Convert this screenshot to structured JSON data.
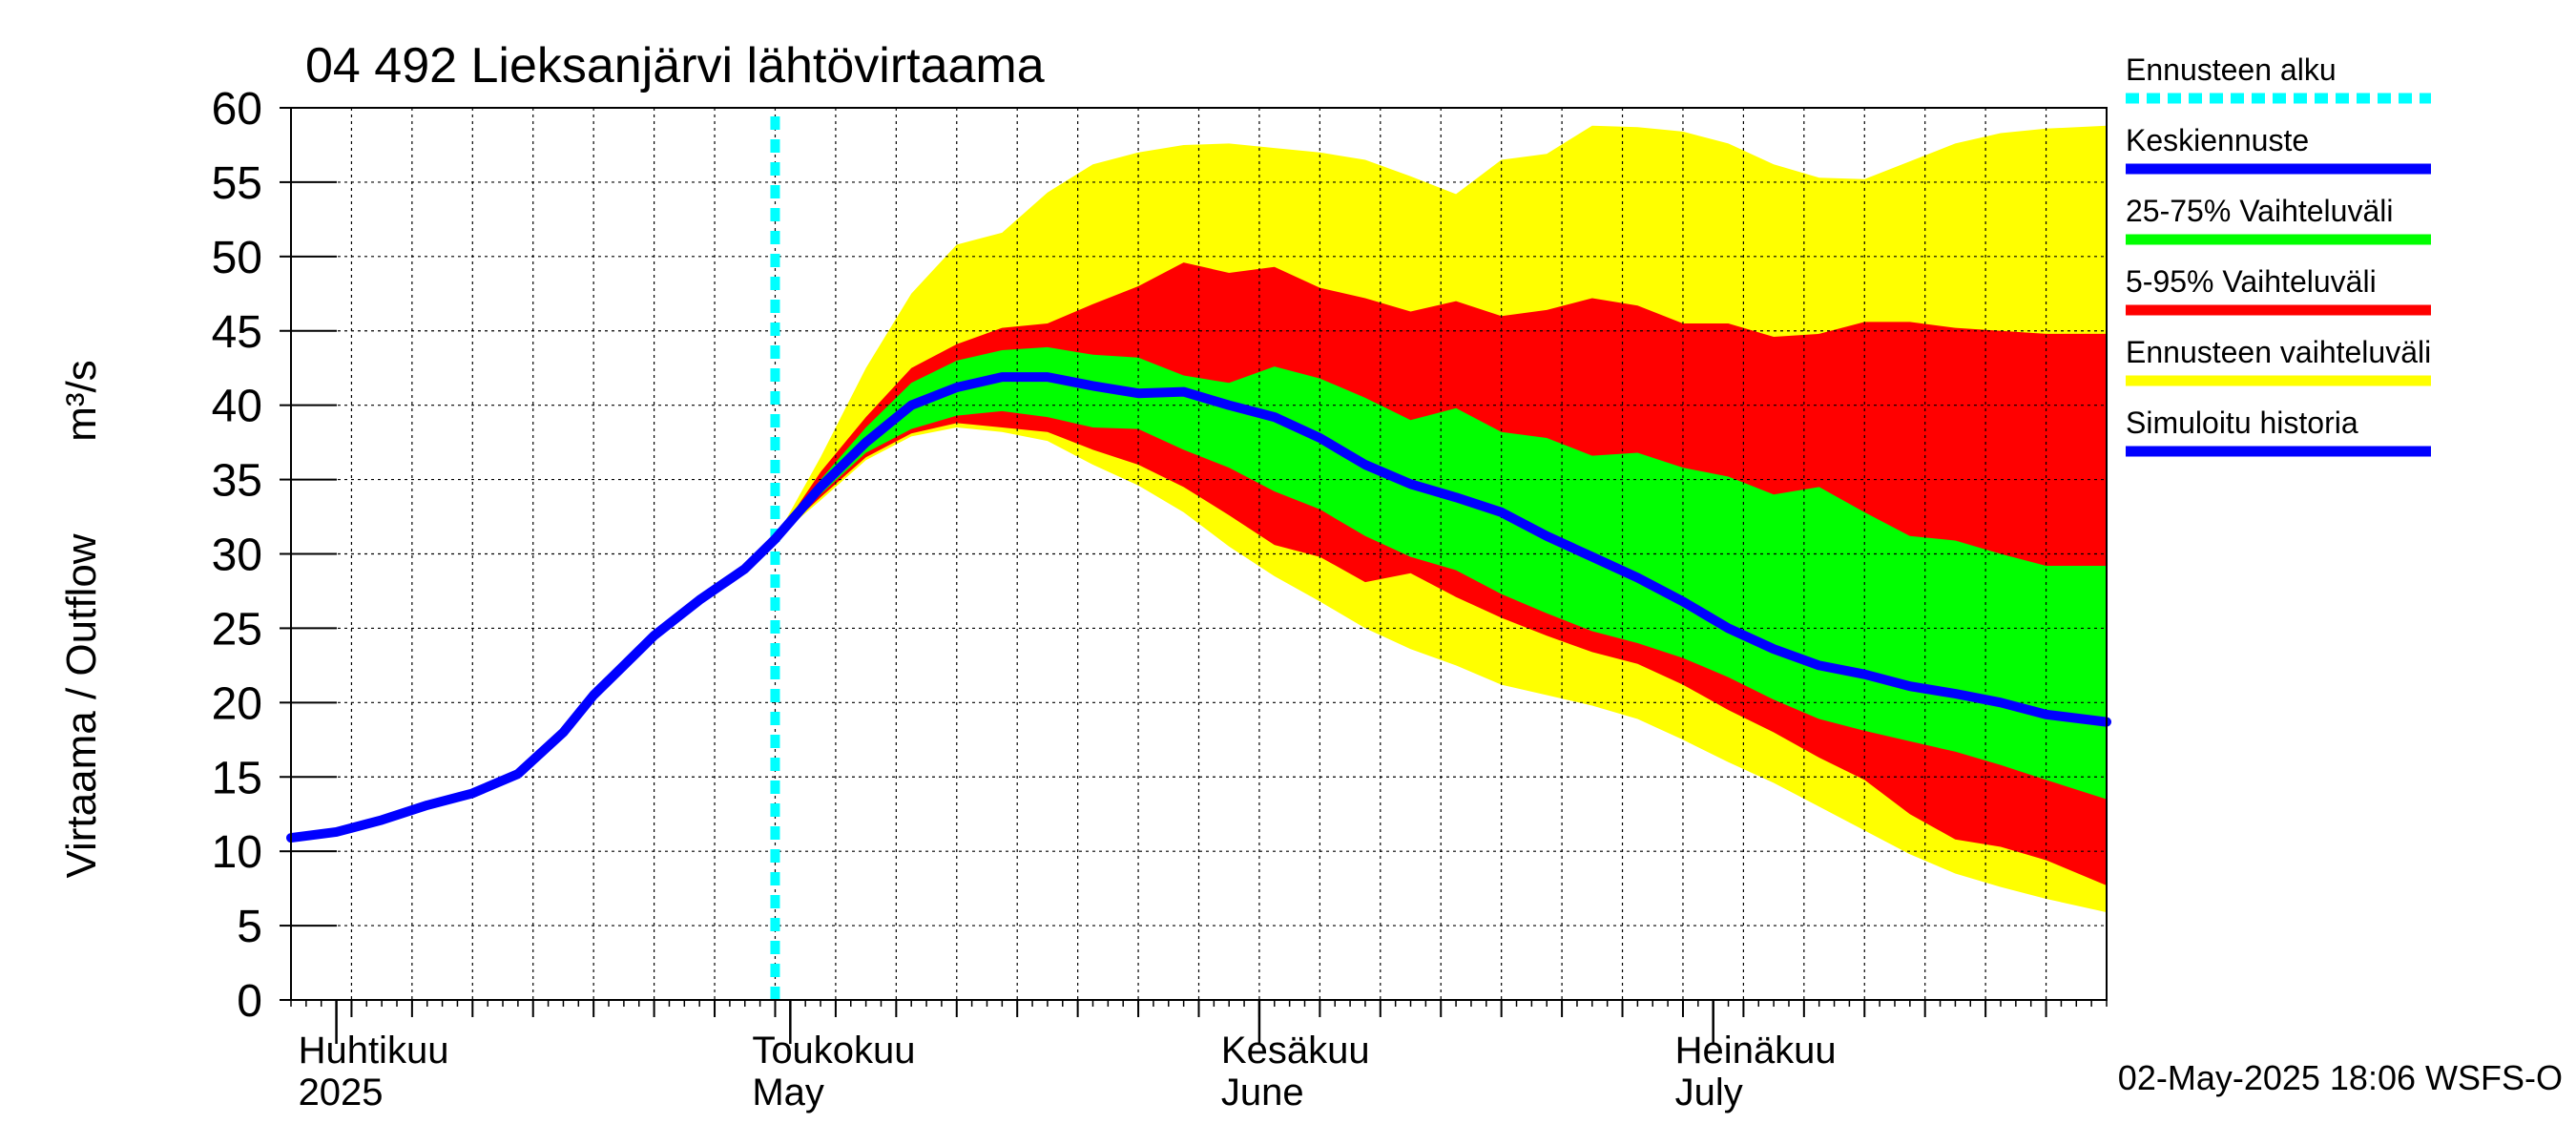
{
  "chart_data": {
    "type": "area",
    "title": "04 492 Lieksanjärvi lähtövirtaama",
    "ylabel": "Virtaama / Outflow",
    "yunit": "m³/s",
    "ylim": [
      0,
      60
    ],
    "yticks": [
      0,
      5,
      10,
      15,
      20,
      25,
      30,
      35,
      40,
      45,
      50,
      55,
      60
    ],
    "xlim": [
      "2025-03-29",
      "2025-07-27"
    ],
    "months": [
      {
        "date": "2025-04-01",
        "fi": "Huhtikuu",
        "en": "2025"
      },
      {
        "date": "2025-05-01",
        "fi": "Toukokuu",
        "en": "May"
      },
      {
        "date": "2025-06-01",
        "fi": "Kesäkuu",
        "en": "June"
      },
      {
        "date": "2025-07-01",
        "fi": "Heinäkuu",
        "en": "July"
      }
    ],
    "forecast_start": "2025-04-30",
    "grid": true,
    "legend_position": "right",
    "timestamp": "02-May-2025 18:06 WSFS-O",
    "legend": [
      {
        "key": "start",
        "label": "Ennusteen alku",
        "color": "#00ffff",
        "style": "dashed"
      },
      {
        "key": "mean",
        "label": "Keskiennuste",
        "color": "#0000ff"
      },
      {
        "key": "p25_75",
        "label": "25-75% Vaihteluväli",
        "color": "#00ff00"
      },
      {
        "key": "p5_95",
        "label": "5-95% Vaihteluväli",
        "color": "#ff0000"
      },
      {
        "key": "range",
        "label": "Ennusteen vaihteluväli",
        "color": "#ffff00"
      },
      {
        "key": "history",
        "label": "Simuloitu historia",
        "color": "#0000ff"
      }
    ],
    "history": {
      "name": "Simuloitu historia",
      "dates": [
        "2025-03-29",
        "2025-04-01",
        "2025-04-04",
        "2025-04-07",
        "2025-04-10",
        "2025-04-13",
        "2025-04-16",
        "2025-04-18",
        "2025-04-20",
        "2025-04-22",
        "2025-04-25",
        "2025-04-28",
        "2025-04-30"
      ],
      "values": [
        10.9,
        11.3,
        12.1,
        13.1,
        13.9,
        15.2,
        18.0,
        20.5,
        22.5,
        24.5,
        26.9,
        29.0,
        31.0
      ]
    },
    "forecast": {
      "dates": [
        "2025-04-30",
        "2025-05-03",
        "2025-05-06",
        "2025-05-09",
        "2025-05-12",
        "2025-05-15",
        "2025-05-18",
        "2025-05-21",
        "2025-05-24",
        "2025-05-27",
        "2025-05-30",
        "2025-06-02",
        "2025-06-05",
        "2025-06-08",
        "2025-06-11",
        "2025-06-14",
        "2025-06-17",
        "2025-06-20",
        "2025-06-23",
        "2025-06-26",
        "2025-06-29",
        "2025-07-02",
        "2025-07-05",
        "2025-07-08",
        "2025-07-11",
        "2025-07-14",
        "2025-07-17",
        "2025-07-20",
        "2025-07-23",
        "2025-07-27"
      ],
      "mean": [
        31.0,
        34.5,
        37.5,
        40.0,
        41.2,
        41.9,
        41.9,
        41.3,
        40.8,
        40.9,
        40.0,
        39.2,
        37.8,
        36.0,
        34.7,
        33.8,
        32.8,
        31.2,
        29.8,
        28.4,
        26.8,
        25.0,
        23.6,
        22.5,
        21.9,
        21.1,
        20.6,
        20.0,
        19.2,
        18.7
      ],
      "p25": [
        31.0,
        34.0,
        36.8,
        38.4,
        39.3,
        39.6,
        39.2,
        38.5,
        38.4,
        37.0,
        35.8,
        34.2,
        33.0,
        31.2,
        29.8,
        28.9,
        27.3,
        26.0,
        24.8,
        24.0,
        23.0,
        21.7,
        20.2,
        18.9,
        18.1,
        17.4,
        16.7,
        15.8,
        14.8,
        13.5
      ],
      "p75": [
        31.0,
        35.0,
        38.5,
        41.5,
        43.0,
        43.7,
        43.9,
        43.4,
        43.2,
        42.0,
        41.5,
        42.6,
        41.8,
        40.5,
        39.0,
        39.8,
        38.2,
        37.8,
        36.6,
        36.8,
        35.8,
        35.2,
        34.0,
        34.5,
        32.8,
        31.2,
        30.9,
        30.0,
        29.2,
        29.2
      ],
      "p5": [
        31.0,
        33.8,
        36.5,
        38.1,
        38.8,
        38.5,
        38.2,
        37.0,
        36.0,
        34.5,
        32.6,
        30.6,
        29.8,
        28.1,
        28.7,
        27.1,
        25.7,
        24.5,
        23.4,
        22.6,
        21.2,
        19.5,
        18.0,
        16.3,
        14.8,
        12.5,
        10.8,
        10.3,
        9.4,
        7.7
      ],
      "p95": [
        31.0,
        35.5,
        39.2,
        42.5,
        44.1,
        45.2,
        45.5,
        46.8,
        48.0,
        49.6,
        48.9,
        49.3,
        47.9,
        47.2,
        46.3,
        47.0,
        46.0,
        46.4,
        47.2,
        46.7,
        45.5,
        45.5,
        44.6,
        44.8,
        45.6,
        45.6,
        45.2,
        45.0,
        44.8,
        44.8
      ],
      "min": [
        31.0,
        33.6,
        36.3,
        37.9,
        38.5,
        38.2,
        37.6,
        36.0,
        34.6,
        32.8,
        30.5,
        28.5,
        26.8,
        25.0,
        23.6,
        22.5,
        21.2,
        20.5,
        19.8,
        18.9,
        17.5,
        16.0,
        14.6,
        13.0,
        11.4,
        9.8,
        8.5,
        7.6,
        6.8,
        5.9
      ],
      "max": [
        31.0,
        36.5,
        42.5,
        47.5,
        50.8,
        51.6,
        54.3,
        56.2,
        57.0,
        57.5,
        57.6,
        57.3,
        57.0,
        56.5,
        55.4,
        54.2,
        56.5,
        56.9,
        58.8,
        58.7,
        58.4,
        57.6,
        56.2,
        55.3,
        55.2,
        56.4,
        57.6,
        58.3,
        58.6,
        58.8
      ]
    }
  }
}
